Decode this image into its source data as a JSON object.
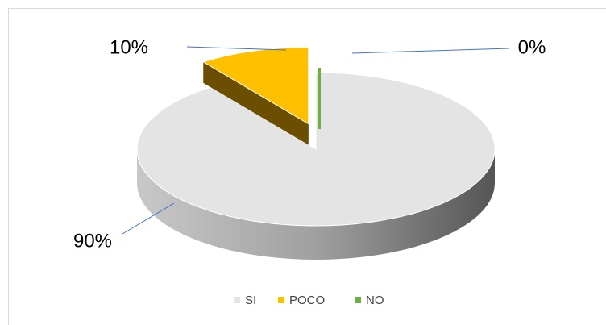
{
  "chart_data": {
    "type": "pie",
    "categories": [
      "SI",
      "POCO",
      "NO"
    ],
    "values": [
      90,
      10,
      0
    ],
    "value_labels": [
      "90%",
      "10%",
      "0%"
    ],
    "colors": [
      "#e4e4e4",
      "#ffc000",
      "#70ad47"
    ],
    "legend": "bottom"
  }
}
